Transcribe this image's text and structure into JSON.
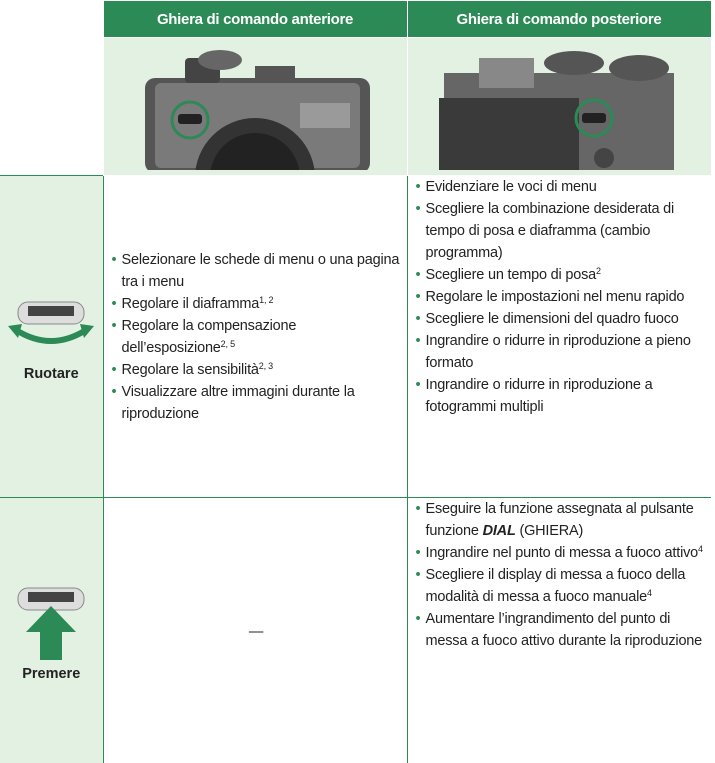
{
  "header": {
    "col1": "Ghiera di comando anteriore",
    "col2": "Ghiera di comando posteriore"
  },
  "rows": [
    {
      "label": "Ruotare",
      "col1": [
        {
          "text": "Selezionare le schede di menu o una pagina tra i menu"
        },
        {
          "text": "Regolare il diaframma",
          "sup": "1, 2"
        },
        {
          "text": "Regolare la compensazione dell’esposizione",
          "sup": "2, 5"
        },
        {
          "text": "Regolare la sensibilità",
          "sup": "2, 3"
        },
        {
          "text": "Visualizzare altre immagini durante la riproduzione"
        }
      ],
      "col2": [
        {
          "text": "Evidenziare le voci di menu"
        },
        {
          "text": "Scegliere la combinazione desiderata di tempo di posa e diaframma (cambio programma)"
        },
        {
          "text": "Scegliere un tempo di posa",
          "sup": "2"
        },
        {
          "text": "Regolare le impostazioni nel menu rapido"
        },
        {
          "text": "Scegliere le dimensioni del quadro fuoco"
        },
        {
          "text": "Ingrandire o ridurre in riproduzione a pieno formato"
        },
        {
          "text": "Ingrandire o ridurre in riproduzione a fotogrammi multipli"
        }
      ]
    },
    {
      "label": "Premere",
      "col1": "—",
      "col2": [
        {
          "text": "Eseguire la funzione assegnata al pulsante funzione",
          "em": "DIAL",
          "after": "(GHIERA)"
        },
        {
          "text": "Ingrandire nel punto di messa a fuoco attivo",
          "sup": "4"
        },
        {
          "text": "Scegliere il display di messa a fuoco della modalità di messa a fuoco manuale",
          "sup": "4"
        },
        {
          "text": "Aumentare l’ingrandimento del punto di messa a fuoco attivo durante la riproduzione"
        }
      ]
    }
  ]
}
